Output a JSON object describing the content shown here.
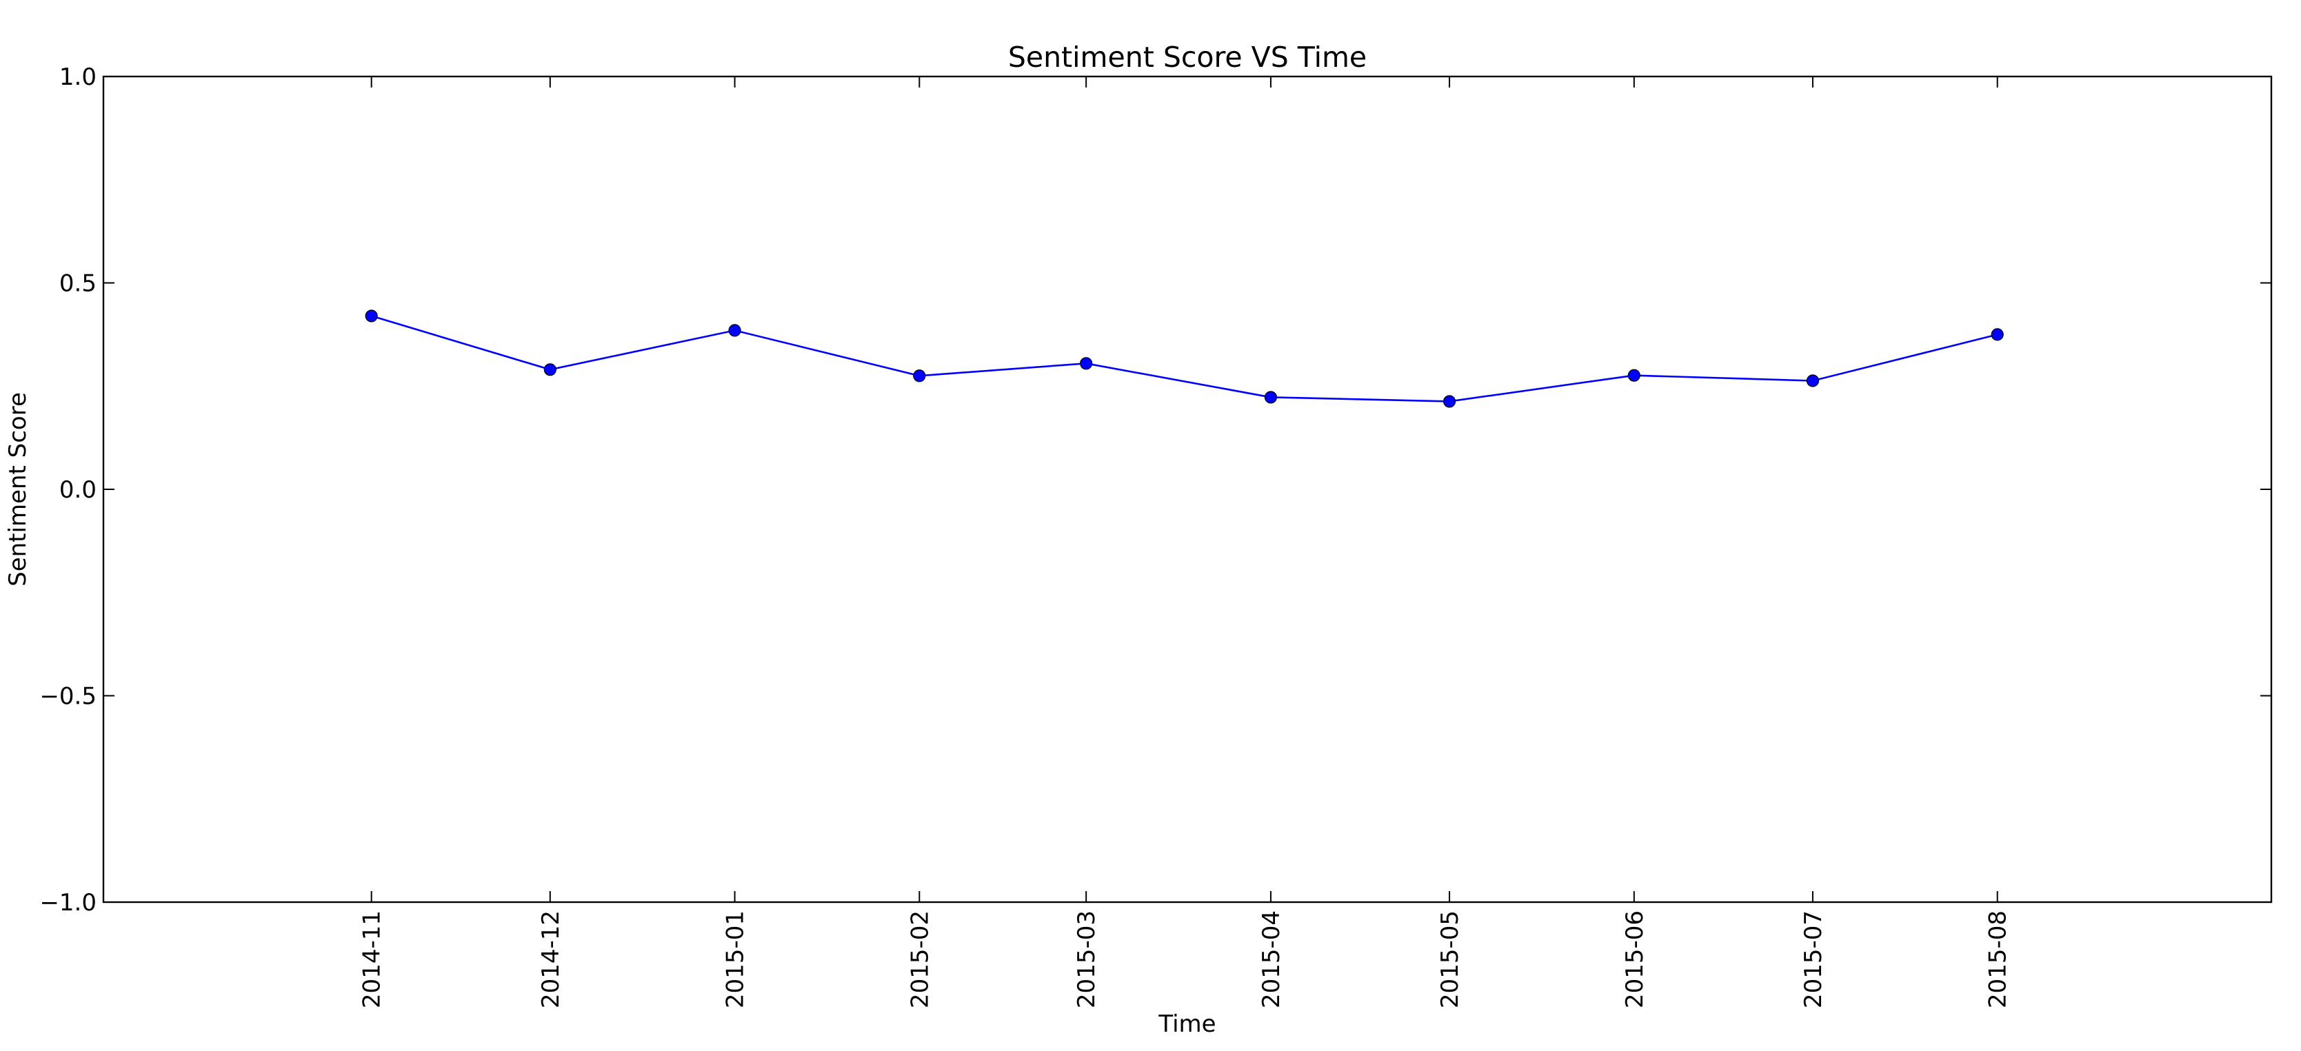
{
  "chart_data": {
    "type": "line",
    "title": "Sentiment Score VS Time",
    "xlabel": "Time",
    "ylabel": "Sentiment Score",
    "categories": [
      "2014-11",
      "2014-12",
      "2015-01",
      "2015-02",
      "2015-03",
      "2015-04",
      "2015-05",
      "2015-06",
      "2015-07",
      "2015-08"
    ],
    "x_dates": [
      "2014-11-15",
      "2014-12-15",
      "2015-01-15",
      "2015-02-15",
      "2015-03-15",
      "2015-04-15",
      "2015-05-15",
      "2015-06-15",
      "2015-07-15",
      "2015-08-15"
    ],
    "xlim": [
      "2014-10-01",
      "2015-09-30"
    ],
    "series": [
      {
        "values": [
          0.42,
          0.29,
          0.385,
          0.275,
          0.305,
          0.223,
          0.213,
          0.276,
          0.263,
          0.375
        ],
        "color": "#0000ff",
        "marker": "circle"
      }
    ],
    "ylim": [
      -1.0,
      1.0
    ],
    "yticks": [
      -1.0,
      -0.5,
      0.0,
      0.5,
      1.0
    ],
    "ytick_labels": [
      "−1.0",
      "−0.5",
      "0.0",
      "0.5",
      "1.0"
    ],
    "grid": false,
    "legend": "none"
  }
}
